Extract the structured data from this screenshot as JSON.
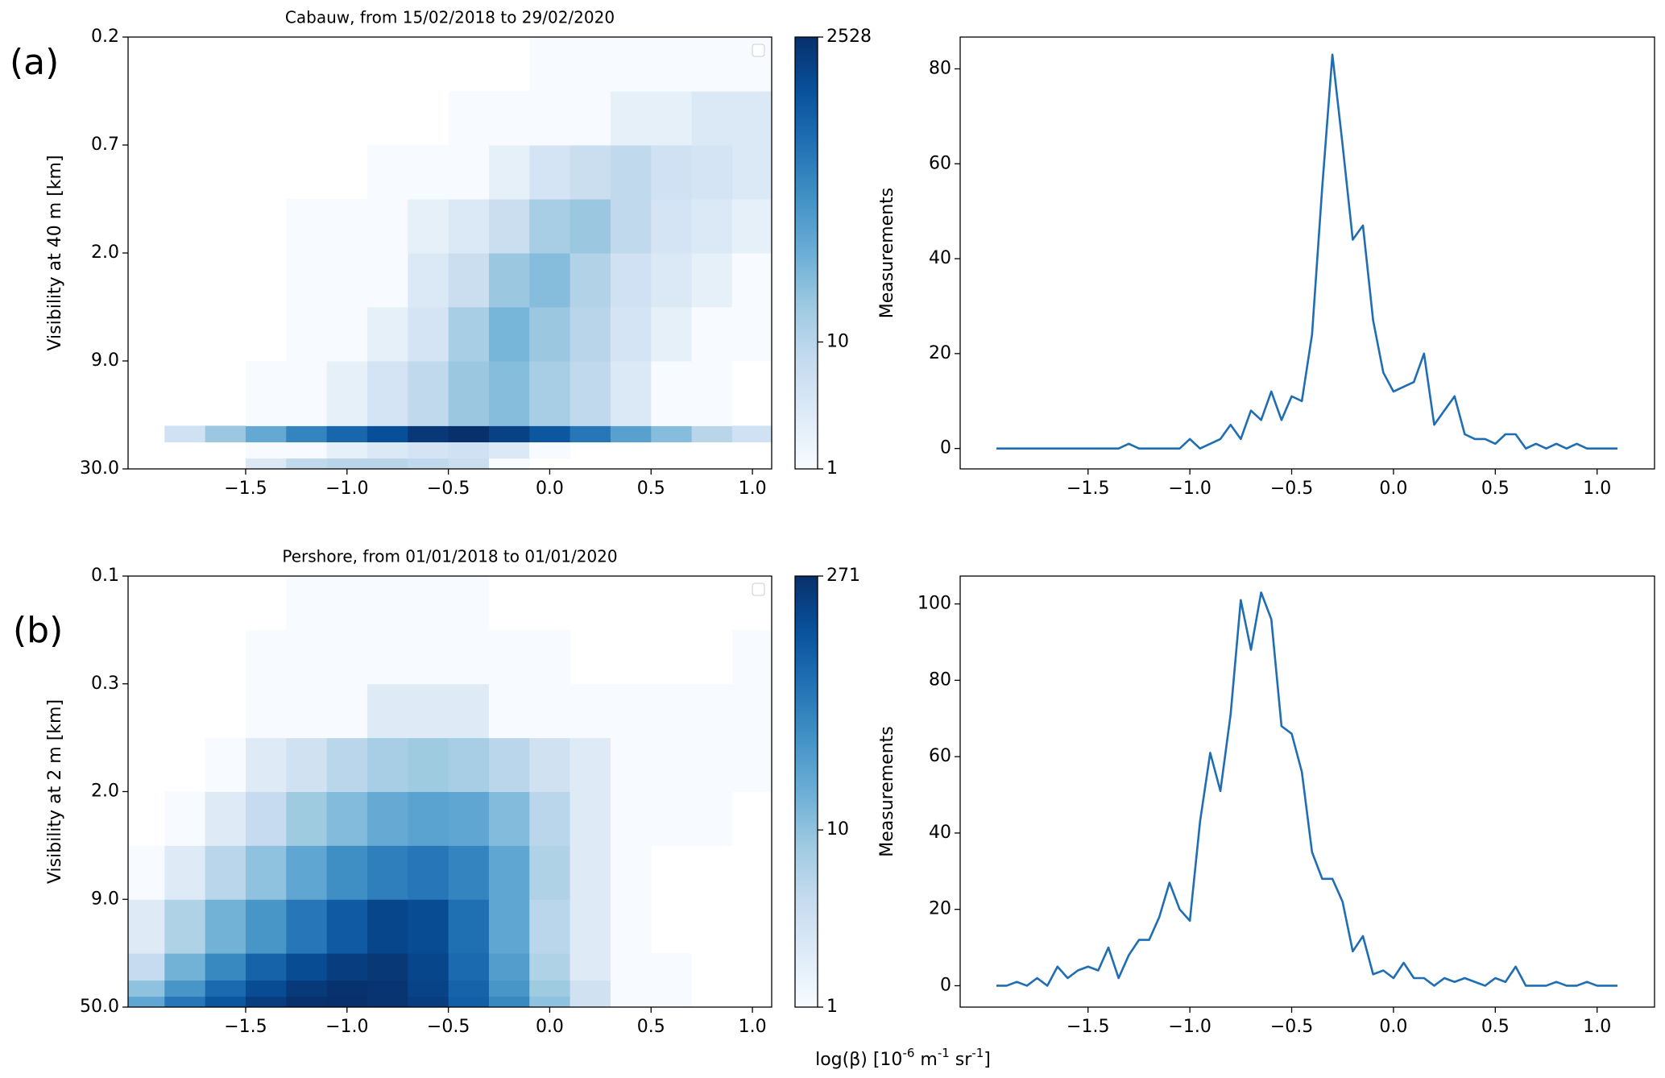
{
  "figure": {
    "panel_labels": [
      "(a)",
      "(b)"
    ],
    "xlabel": [
      "log(β) [10",
      "-6",
      " m",
      "-1",
      " sr",
      "-1",
      "]"
    ]
  },
  "chart_data": [
    {
      "type": "histogram2d",
      "title": "Cabauw, from 15/02/2018 to 29/02/2020",
      "ylabel": "Visibility at 40 m [km]",
      "xlim": [
        -2.08,
        1.095
      ],
      "xticks": [
        {
          "value": -1.5,
          "label": "−1.5"
        },
        {
          "value": -1.0,
          "label": "−1.0"
        },
        {
          "value": -0.5,
          "label": "−0.5"
        },
        {
          "value": 0,
          "label": "0.0"
        },
        {
          "value": 0.5,
          "label": "0.5"
        },
        {
          "value": 1.0,
          "label": "1.0"
        }
      ],
      "ylim": [
        0,
        4
      ],
      "yticks": [
        {
          "value": 0,
          "label": "30.0"
        },
        {
          "value": 1,
          "label": "9.0"
        },
        {
          "value": 2,
          "label": "2.0"
        },
        {
          "value": 3,
          "label": "0.7"
        },
        {
          "value": 4,
          "label": "0.2"
        }
      ],
      "x_edges": [
        -2.1,
        -1.9,
        -1.7,
        -1.5,
        -1.3,
        -1.1,
        -0.9,
        -0.7,
        -0.5,
        -0.3,
        -0.1,
        0.1,
        0.3,
        0.5,
        0.7,
        0.9,
        1.1
      ],
      "y_edges": [
        0,
        0.1,
        0.25,
        0.4,
        1,
        1.5,
        2,
        2.5,
        3,
        3.5,
        4
      ],
      "counts": [
        [
          0,
          0,
          0,
          3,
          8,
          10,
          10,
          8,
          6,
          1,
          0,
          0,
          0,
          0,
          0,
          0
        ],
        [
          0,
          0,
          0,
          1,
          1,
          2,
          3,
          4,
          5,
          3,
          1,
          0,
          0,
          0,
          0,
          0
        ],
        [
          0,
          5,
          20,
          60,
          200,
          500,
          1000,
          2000,
          2528,
          1500,
          800,
          300,
          80,
          30,
          10,
          5
        ],
        [
          0,
          0,
          0,
          1,
          1,
          2,
          4,
          8,
          20,
          30,
          15,
          8,
          3,
          1,
          1,
          0
        ],
        [
          0,
          0,
          0,
          0,
          1,
          1,
          2,
          4,
          15,
          40,
          20,
          10,
          4,
          2,
          1,
          1
        ],
        [
          0,
          0,
          0,
          0,
          1,
          1,
          1,
          3,
          6,
          20,
          30,
          12,
          5,
          3,
          2,
          1
        ],
        [
          0,
          0,
          0,
          0,
          1,
          1,
          1,
          2,
          3,
          6,
          15,
          20,
          8,
          4,
          3,
          2
        ],
        [
          0,
          0,
          0,
          0,
          0,
          0,
          1,
          1,
          1,
          2,
          4,
          6,
          8,
          5,
          4,
          3
        ],
        [
          0,
          0,
          0,
          0,
          0,
          0,
          0,
          0,
          1,
          1,
          1,
          1,
          2,
          2,
          3,
          3
        ],
        [
          0,
          0,
          0,
          0,
          0,
          0,
          0,
          0,
          0,
          0,
          1,
          1,
          1,
          1,
          1,
          1
        ]
      ],
      "log_color": true,
      "clim": [
        1,
        2528
      ],
      "cticks": [
        1,
        10,
        2528
      ],
      "colormap": [
        "#f7fbff",
        "#deebf7",
        "#c6dbef",
        "#9ecae1",
        "#6baed6",
        "#4292c6",
        "#2171b5",
        "#08519c",
        "#08306b"
      ]
    },
    {
      "type": "line",
      "ylabel": "Measurements",
      "color": "#1f6db3",
      "xlim": [
        -2.128,
        1.282
      ],
      "xticks": [
        {
          "value": -1.5,
          "label": "−1.5"
        },
        {
          "value": -1.0,
          "label": "−1.0"
        },
        {
          "value": -0.5,
          "label": "−0.5"
        },
        {
          "value": 0,
          "label": "0.0"
        },
        {
          "value": 0.5,
          "label": "0.5"
        },
        {
          "value": 1.0,
          "label": "1.0"
        }
      ],
      "ylim": [
        -4.3,
        86.7
      ],
      "yticks": [
        0,
        20,
        40,
        60,
        80
      ],
      "x": [
        -1.95,
        -1.9,
        -1.85,
        -1.8,
        -1.75,
        -1.7,
        -1.65,
        -1.6,
        -1.55,
        -1.5,
        -1.45,
        -1.4,
        -1.35,
        -1.3,
        -1.25,
        -1.2,
        -1.15,
        -1.1,
        -1.05,
        -1.0,
        -0.95,
        -0.9,
        -0.85,
        -0.8,
        -0.75,
        -0.7,
        -0.65,
        -0.6,
        -0.55,
        -0.5,
        -0.45,
        -0.4,
        -0.35,
        -0.3,
        -0.25,
        -0.2,
        -0.15,
        -0.1,
        -0.05,
        0,
        0.05,
        0.1,
        0.15,
        0.2,
        0.25,
        0.3,
        0.35,
        0.4,
        0.45,
        0.5,
        0.55,
        0.6,
        0.65,
        0.7,
        0.75,
        0.8,
        0.85,
        0.9,
        0.95,
        1.0,
        1.05,
        1.1
      ],
      "values": [
        0,
        0,
        0,
        0,
        0,
        0,
        0,
        0,
        0,
        0,
        0,
        0,
        0,
        1,
        0,
        0,
        0,
        0,
        0,
        2,
        0,
        1,
        2,
        5,
        2,
        8,
        6,
        12,
        6,
        11,
        10,
        24,
        55,
        83,
        64,
        44,
        47,
        27,
        16,
        12,
        13,
        14,
        20,
        5,
        8,
        11,
        3,
        2,
        2,
        1,
        3,
        3,
        0,
        1,
        0,
        1,
        0,
        1,
        0,
        0,
        0,
        0
      ]
    },
    {
      "type": "histogram2d",
      "title": "Pershore, from 01/01/2018 to 01/01/2020",
      "ylabel": "Visibility at 2 m [km]",
      "xlim": [
        -2.08,
        1.095
      ],
      "xticks": [
        {
          "value": -1.5,
          "label": "−1.5"
        },
        {
          "value": -1.0,
          "label": "−1.0"
        },
        {
          "value": -0.5,
          "label": "−0.5"
        },
        {
          "value": 0,
          "label": "0.0"
        },
        {
          "value": 0.5,
          "label": "0.5"
        },
        {
          "value": 1.0,
          "label": "1.0"
        }
      ],
      "ylim": [
        0,
        4
      ],
      "yticks": [
        {
          "value": 0,
          "label": "50.0"
        },
        {
          "value": 1,
          "label": "9.0"
        },
        {
          "value": 2,
          "label": "2.0"
        },
        {
          "value": 3,
          "label": "0.3"
        },
        {
          "value": 4,
          "label": "0.1"
        }
      ],
      "x_edges": [
        -2.1,
        -1.9,
        -1.7,
        -1.5,
        -1.3,
        -1.1,
        -0.9,
        -0.7,
        -0.5,
        -0.3,
        -0.1,
        0.1,
        0.3,
        0.5,
        0.7,
        0.9,
        1.1
      ],
      "y_edges": [
        0,
        0.1,
        0.25,
        0.5,
        1,
        1.5,
        2,
        2.5,
        3,
        3.5,
        4
      ],
      "counts": [
        [
          20,
          60,
          120,
          200,
          260,
          271,
          250,
          200,
          100,
          40,
          10,
          3,
          1,
          1,
          0,
          0
        ],
        [
          10,
          30,
          80,
          150,
          220,
          260,
          250,
          180,
          90,
          30,
          8,
          3,
          1,
          1,
          0,
          0
        ],
        [
          4,
          15,
          40,
          90,
          150,
          200,
          230,
          170,
          80,
          25,
          6,
          2,
          1,
          1,
          0,
          0
        ],
        [
          2,
          6,
          15,
          30,
          60,
          110,
          170,
          150,
          70,
          20,
          5,
          2,
          1,
          0,
          0,
          0
        ],
        [
          1,
          2,
          5,
          10,
          20,
          35,
          50,
          60,
          45,
          20,
          6,
          2,
          1,
          0,
          0,
          0
        ],
        [
          0,
          1,
          2,
          4,
          8,
          12,
          18,
          22,
          20,
          12,
          5,
          2,
          1,
          1,
          1,
          0
        ],
        [
          0,
          0,
          1,
          2,
          3,
          5,
          7,
          8,
          7,
          5,
          3,
          2,
          1,
          1,
          1,
          1
        ],
        [
          0,
          0,
          0,
          1,
          1,
          1,
          2,
          2,
          2,
          1,
          1,
          1,
          1,
          1,
          1,
          1
        ],
        [
          0,
          0,
          0,
          1,
          1,
          1,
          1,
          1,
          1,
          1,
          1,
          0,
          0,
          0,
          0,
          1
        ],
        [
          0,
          0,
          0,
          0,
          1,
          1,
          1,
          1,
          1,
          0,
          0,
          0,
          0,
          0,
          0,
          0
        ]
      ],
      "log_color": true,
      "clim": [
        1,
        271
      ],
      "cticks": [
        1,
        10,
        271
      ],
      "colormap": [
        "#f7fbff",
        "#deebf7",
        "#c6dbef",
        "#9ecae1",
        "#6baed6",
        "#4292c6",
        "#2171b5",
        "#08519c",
        "#08306b"
      ]
    },
    {
      "type": "line",
      "ylabel": "Measurements",
      "color": "#1f6db3",
      "xlim": [
        -2.128,
        1.282
      ],
      "xticks": [
        {
          "value": -1.5,
          "label": "−1.5"
        },
        {
          "value": -1.0,
          "label": "−1.0"
        },
        {
          "value": -0.5,
          "label": "−0.5"
        },
        {
          "value": 0,
          "label": "0.0"
        },
        {
          "value": 0.5,
          "label": "0.5"
        },
        {
          "value": 1.0,
          "label": "1.0"
        }
      ],
      "ylim": [
        -5.6,
        107.3
      ],
      "yticks": [
        0,
        20,
        40,
        60,
        80,
        100
      ],
      "x": [
        -1.95,
        -1.9,
        -1.85,
        -1.8,
        -1.75,
        -1.7,
        -1.65,
        -1.6,
        -1.55,
        -1.5,
        -1.45,
        -1.4,
        -1.35,
        -1.3,
        -1.25,
        -1.2,
        -1.15,
        -1.1,
        -1.05,
        -1.0,
        -0.95,
        -0.9,
        -0.85,
        -0.8,
        -0.75,
        -0.7,
        -0.65,
        -0.6,
        -0.55,
        -0.5,
        -0.45,
        -0.4,
        -0.35,
        -0.3,
        -0.25,
        -0.2,
        -0.15,
        -0.1,
        -0.05,
        0,
        0.05,
        0.1,
        0.15,
        0.2,
        0.25,
        0.3,
        0.35,
        0.4,
        0.45,
        0.5,
        0.55,
        0.6,
        0.65,
        0.7,
        0.75,
        0.8,
        0.85,
        0.9,
        0.95,
        1.0,
        1.05,
        1.1
      ],
      "values": [
        0,
        0,
        1,
        0,
        2,
        0,
        5,
        2,
        4,
        5,
        4,
        10,
        2,
        8,
        12,
        12,
        18,
        27,
        20,
        17,
        43,
        61,
        51,
        71,
        101,
        88,
        103,
        96,
        68,
        66,
        56,
        35,
        28,
        28,
        22,
        9,
        13,
        3,
        4,
        2,
        6,
        2,
        2,
        0,
        2,
        1,
        2,
        1,
        0,
        2,
        1,
        5,
        0,
        0,
        0,
        1,
        0,
        0,
        1,
        0,
        0,
        0
      ]
    }
  ]
}
